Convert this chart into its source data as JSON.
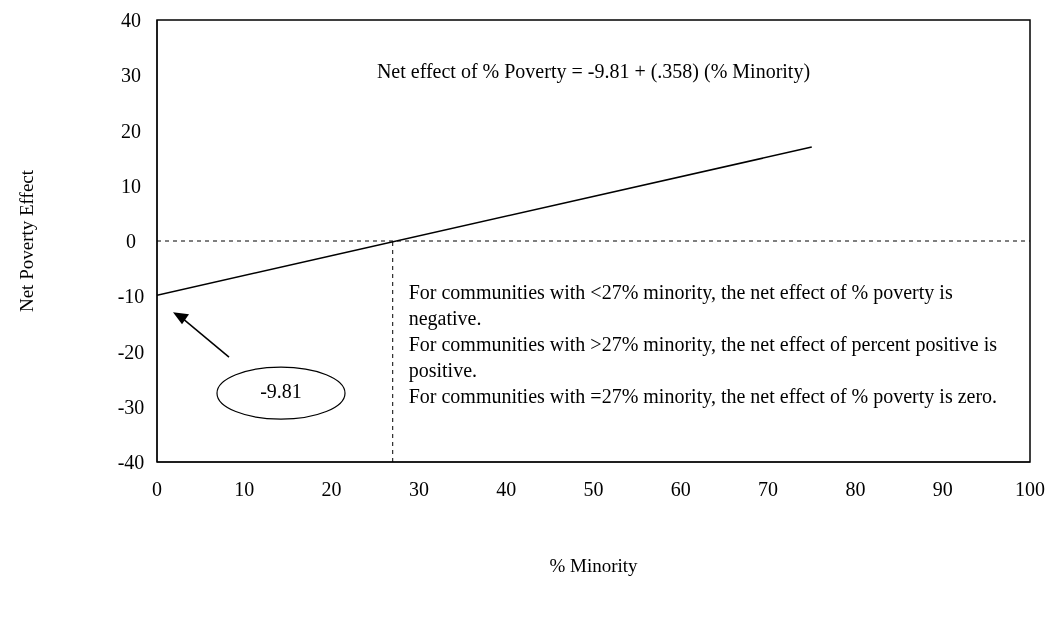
{
  "chart_data": {
    "type": "line",
    "xlabel": "% Minority",
    "ylabel": "Net Poverty Effect",
    "x": [
      0,
      75
    ],
    "series": [
      {
        "color": "#000000",
        "values": [
          -9.8,
          17
        ]
      }
    ],
    "xlim": [
      0,
      100
    ],
    "xticks": [
      0,
      10,
      20,
      30,
      40,
      50,
      60,
      70,
      80,
      90,
      100
    ],
    "ylim": [
      -40,
      40
    ],
    "yticks": [
      -40,
      -30,
      -20,
      -10,
      0,
      10,
      20,
      30,
      40
    ],
    "marker": "none",
    "line_style": "solid",
    "ref_lines": [
      {
        "axis": "y",
        "value": 0,
        "line_style": "dashed",
        "color": "#000000"
      },
      {
        "axis": "x",
        "value": 27,
        "line_style": "dashed",
        "color": "#000000"
      }
    ],
    "annotations": [
      "Net effect of % Poverty = -9.81 + (.358) (% Minority)",
      "-9.81",
      "For communities with <27% minority, the net effect of % poverty is negative.",
      "For communities with >27% minority, the net effect of percent positive is positive.",
      "For communities with =27% minority, the net effect of % poverty is zero."
    ]
  }
}
